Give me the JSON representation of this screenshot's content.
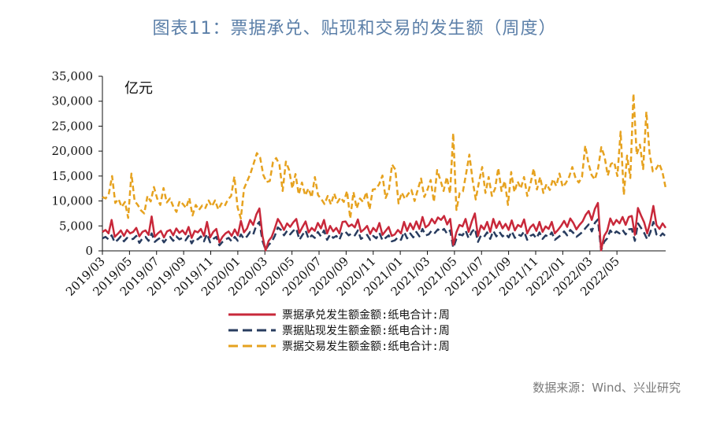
{
  "title": "图表11：票据承兑、贴现和交易的发生额（周度）",
  "source": "数据来源：Wind、兴业研究",
  "chart_data": {
    "type": "line",
    "unit": "亿元",
    "ylim": [
      0,
      35000
    ],
    "yticks": [
      "35,000",
      "30,000",
      "25,000",
      "20,000",
      "15,000",
      "10,000",
      "5,000",
      "0"
    ],
    "yvalues": [
      35000,
      30000,
      25000,
      20000,
      15000,
      10000,
      5000,
      0
    ],
    "xticks": [
      "2019/03",
      "2019/05",
      "2019/07",
      "2019/09",
      "2019/11",
      "2020/01",
      "2020/03",
      "2020/05",
      "2020/07",
      "2020/09",
      "2020/11",
      "2021/01",
      "2021/03",
      "2021/05",
      "2021/07",
      "2021/09",
      "2021/11",
      "2022/01",
      "2022/03",
      "2022/05"
    ],
    "x_start": "2019/03",
    "x_end": "2022/06",
    "grid": false,
    "legend_position": "bottom",
    "series": [
      {
        "name": "票据承兑发生额金额:纸电合计:周",
        "color": "#c8283a",
        "style": "solid",
        "values": [
          3800,
          4200,
          3500,
          6200,
          2800,
          3400,
          4100,
          3000,
          4200,
          3500,
          3800,
          4600,
          2900,
          3800,
          4100,
          3200,
          6900,
          2800,
          3500,
          4000,
          2700,
          3900,
          4200,
          3100,
          4500,
          3600,
          4100,
          3300,
          4800,
          2600,
          4000,
          3700,
          4400,
          3000,
          5800,
          2700,
          3800,
          4400,
          1700,
          2800,
          3500,
          3900,
          3000,
          4300,
          3100,
          6000,
          3700,
          4500,
          6200,
          5200,
          7300,
          8500,
          3000,
          100,
          2000,
          2800,
          4500,
          6400,
          5400,
          4200,
          5500,
          4800,
          5700,
          6400,
          3600,
          4800,
          5900,
          3700,
          4600,
          4000,
          5600,
          4500,
          6200,
          3500,
          5000,
          3900,
          4600,
          3500,
          5800,
          5900,
          4900,
          5300,
          4700,
          6300,
          3800,
          4300,
          5000,
          3400,
          4600,
          3900,
          5600,
          3200,
          4000,
          4800,
          3000,
          3300,
          4200,
          3500,
          5800,
          4000,
          5500,
          4300,
          5900,
          4400,
          6800,
          4700,
          5200,
          6400,
          5500,
          6700,
          6200,
          7000,
          5300,
          6400,
          1200,
          3700,
          5200,
          4900,
          6400,
          3800,
          5900,
          7500,
          3000,
          5100,
          4300,
          5800,
          3800,
          6400,
          4600,
          5900,
          4500,
          5400,
          4200,
          6100,
          4100,
          5200,
          4800,
          6300,
          3500,
          4700,
          5300,
          4000,
          5800,
          3800,
          4900,
          4400,
          5800,
          3500,
          4200,
          5000,
          6000,
          4800,
          6500,
          5600,
          4300,
          5200,
          5900,
          7200,
          8000,
          6200,
          8400,
          9600,
          100,
          3000,
          4000,
          6500,
          5200,
          6200,
          5500,
          6800,
          5200,
          6800,
          7000,
          3200,
          8600,
          7100,
          5700,
          3500,
          5800,
          9000,
          5200,
          4400,
          5500,
          4600
        ],
        "values_note": "weekly values",
        "points": 0
      },
      {
        "name": "票据贴现发生额金额:纸电合计:周",
        "color": "#283c5f",
        "style": "dashed",
        "values": [
          2500,
          2800,
          2300,
          3100,
          1700,
          2200,
          2900,
          1900,
          2600,
          2300,
          2400,
          3000,
          1600,
          2500,
          2800,
          2000,
          3500,
          1800,
          2300,
          2700,
          1700,
          2500,
          2800,
          2000,
          2900,
          2300,
          2600,
          2100,
          3000,
          1500,
          2500,
          2300,
          2900,
          1900,
          3400,
          1700,
          2400,
          2800,
          1100,
          1800,
          2300,
          2600,
          1900,
          2800,
          2000,
          3300,
          2400,
          2900,
          3800,
          3300,
          5100,
          5800,
          2000,
          200,
          1200,
          1800,
          3000,
          4700,
          4200,
          3100,
          4000,
          3300,
          4000,
          4500,
          2200,
          3200,
          4100,
          2400,
          3100,
          2600,
          3800,
          2900,
          4100,
          2200,
          3300,
          2600,
          3000,
          2200,
          3800,
          3800,
          3100,
          3500,
          3100,
          4100,
          2400,
          2800,
          3200,
          2200,
          3000,
          2500,
          3600,
          2100,
          2600,
          3100,
          1900,
          2100,
          2700,
          2200,
          3800,
          2500,
          3500,
          2700,
          3800,
          2900,
          4400,
          3100,
          3300,
          4100,
          3600,
          4300,
          3900,
          4400,
          3400,
          4100,
          600,
          2400,
          3300,
          3100,
          4100,
          2500,
          3800,
          4500,
          1800,
          3100,
          2800,
          3700,
          2400,
          4000,
          2900,
          3800,
          2900,
          3400,
          2700,
          3900,
          2600,
          3300,
          3000,
          3900,
          2200,
          3000,
          3300,
          2500,
          3700,
          2400,
          3100,
          2800,
          3700,
          2200,
          2700,
          3200,
          3900,
          3100,
          4200,
          3600,
          2800,
          3300,
          3800,
          4600,
          5300,
          3900,
          5600,
          6300,
          100,
          1800,
          2500,
          4100,
          3300,
          3900,
          3500,
          4200,
          3300,
          4300,
          4400,
          2000,
          5500,
          4600,
          3600,
          2300,
          3700,
          5800,
          3300,
          2800,
          3500,
          2900
        ],
        "values_note": "weekly values",
        "points": 0
      },
      {
        "name": "票据交易发生额金额:纸电合计:周",
        "color": "#e6a21f",
        "style": "dashed",
        "values": [
          10800,
          10500,
          11500,
          15000,
          9600,
          10400,
          8800,
          9800,
          6600,
          15500,
          10000,
          9200,
          8100,
          7500,
          11000,
          9900,
          12800,
          10500,
          9200,
          12600,
          9700,
          10500,
          8900,
          7800,
          10000,
          9400,
          8600,
          10600,
          7100,
          9200,
          8200,
          9100,
          8600,
          10100,
          8900,
          10100,
          8300,
          9500,
          9000,
          10300,
          11000,
          14900,
          8700,
          6500,
          12500,
          14000,
          15500,
          17500,
          19600,
          18700,
          15200,
          13800,
          14000,
          17800,
          18600,
          17300,
          12000,
          17900,
          16200,
          12500,
          15400,
          11300,
          13700,
          11100,
          12500,
          10700,
          14800,
          11200,
          10400,
          9400,
          11000,
          9300,
          11500,
          9700,
          10700,
          9800,
          12000,
          6500,
          11800,
          8500,
          10500,
          9800,
          11800,
          8300,
          12300,
          12400,
          13400,
          15100,
          10600,
          12200,
          17300,
          16300,
          9500,
          11700,
          10400,
          11400,
          12200,
          10000,
          12300,
          14500,
          10800,
          12300,
          14200,
          9800,
          16200,
          14200,
          12000,
          14800,
          11500,
          23600,
          8200,
          11600,
          11900,
          15500,
          19300,
          14200,
          10300,
          13800,
          16800,
          11600,
          14800,
          11000,
          12500,
          16600,
          12000,
          14000,
          9200,
          15800,
          11800,
          13900,
          12500,
          14800,
          11000,
          13500,
          16500,
          12300,
          14800,
          11600,
          13400,
          12200,
          14400,
          13000,
          15500,
          12800,
          13600,
          14800,
          16800,
          14600,
          13700,
          14800,
          21100,
          17600,
          15200,
          14300,
          16500,
          20800,
          18900,
          15100,
          17400,
          17800,
          15000,
          23900,
          11200,
          19100,
          14600,
          31500,
          19300,
          21300,
          16400,
          27900,
          19500,
          15900,
          16400,
          17500,
          15800,
          12600
        ],
        "values_note": "weekly values",
        "points": 0
      }
    ]
  }
}
